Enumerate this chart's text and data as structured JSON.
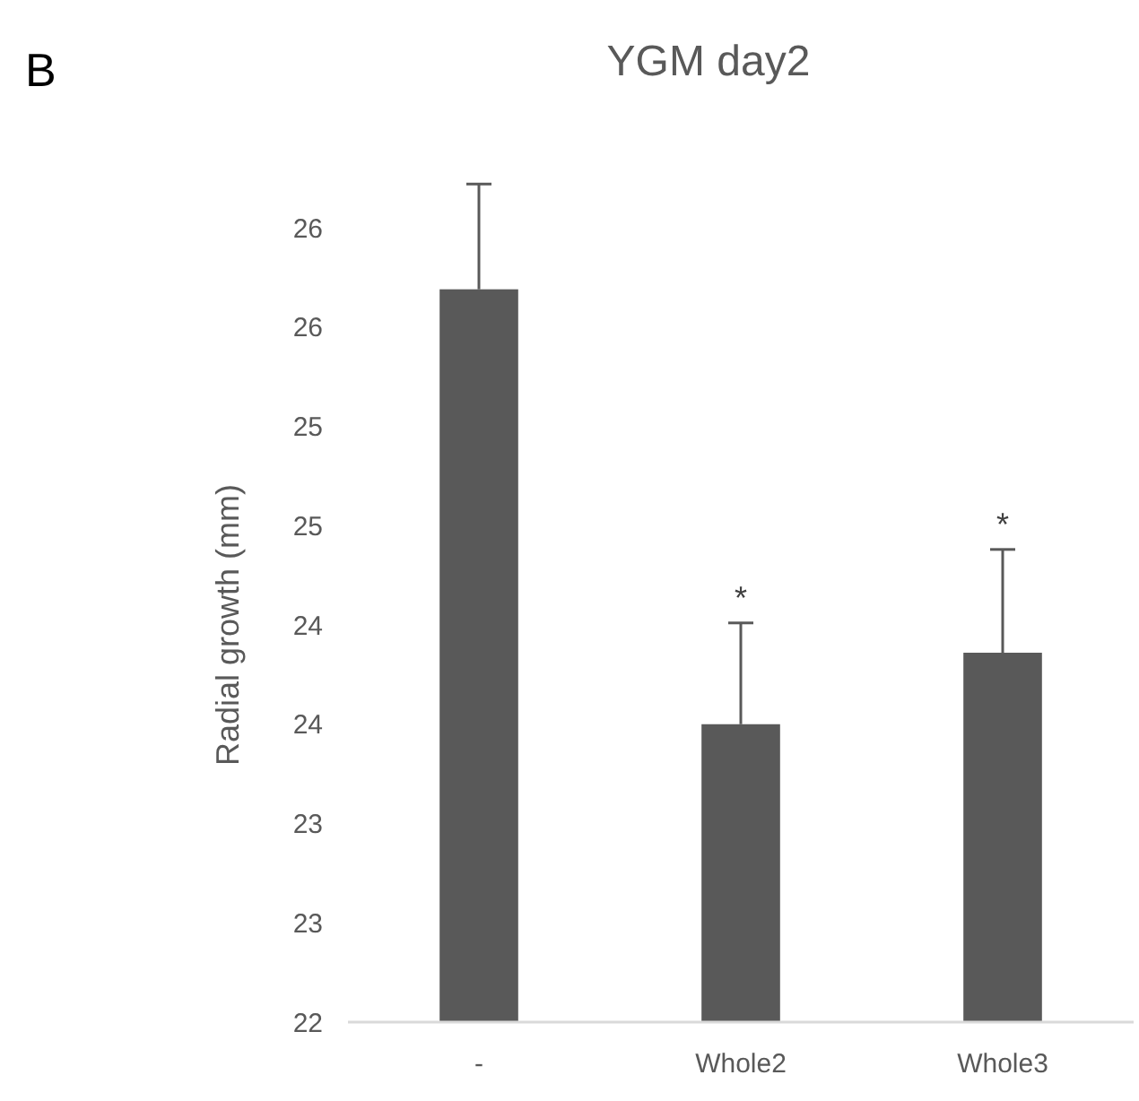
{
  "chart_data": {
    "type": "bar",
    "title": "YGM day2",
    "ylabel": "Radial growth (mm)",
    "categories": [
      "-",
      "Whole2",
      "Whole3"
    ],
    "values": [
      25.69,
      23.5,
      23.86
    ],
    "color": "#595959",
    "errors": [
      [
        25.69,
        26.22
      ],
      [
        23.5,
        24.01
      ],
      [
        23.86,
        24.38
      ]
    ],
    "ylim": [
      22,
      26
    ],
    "yticks": [
      22,
      {
        "value": 22.5,
        "label": "23"
      },
      23,
      {
        "value": 23.5,
        "label": "24"
      },
      24,
      {
        "value": 24.5,
        "label": "25"
      },
      25,
      {
        "value": 25.5,
        "label": "26"
      },
      26
    ],
    "annotations": [
      "B",
      {
        "text": "*",
        "x": "Whole2",
        "y": 24.01
      },
      {
        "text": "*",
        "x": "Whole3",
        "y": 24.38
      }
    ]
  }
}
